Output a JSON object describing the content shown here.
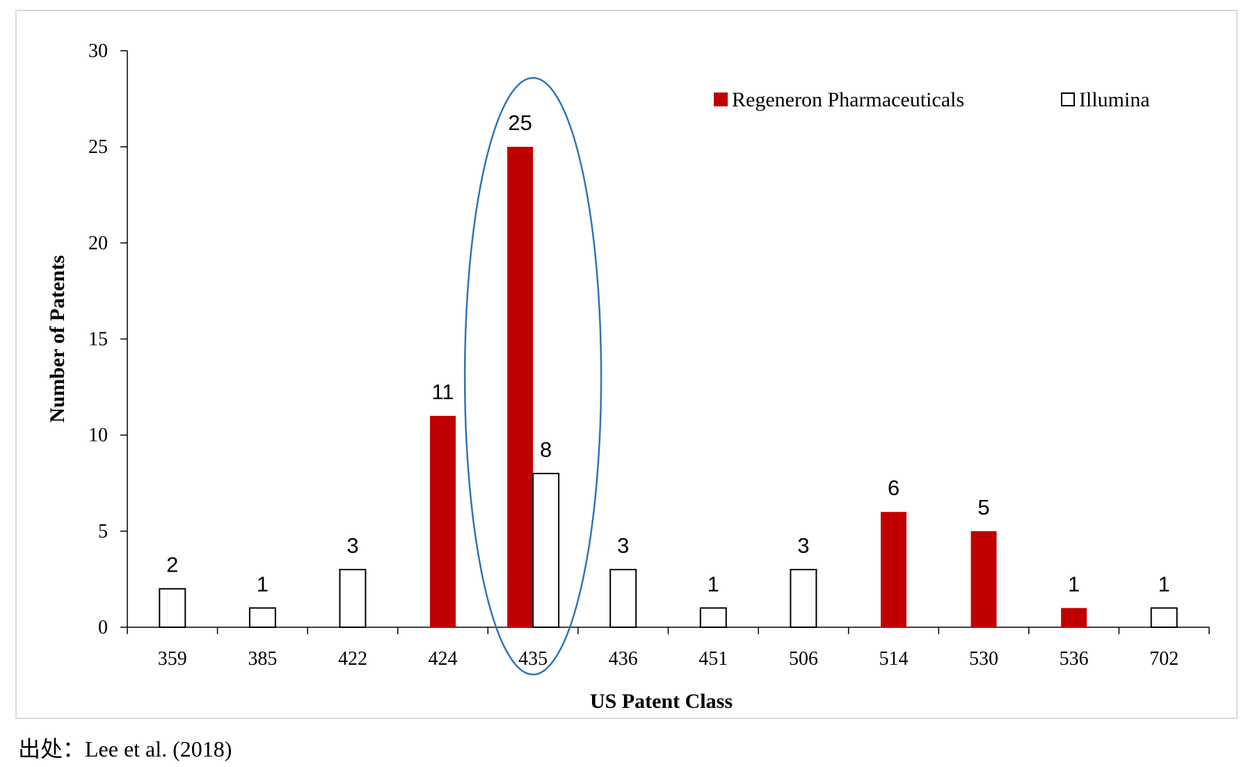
{
  "source_note": "出处：Lee et al. (2018)",
  "colors": {
    "regeneron": "#c00000",
    "illumina": "#ffffff",
    "bar_stroke": "#000000",
    "highlight_ellipse": "#2e75b6"
  },
  "chart_data": {
    "type": "bar",
    "title": "",
    "xlabel": "US Patent Class",
    "ylabel": "Number of Patents",
    "ylim": [
      0,
      30
    ],
    "yticks": [
      0,
      5,
      10,
      15,
      20,
      25,
      30
    ],
    "categories": [
      "359",
      "385",
      "422",
      "424",
      "435",
      "436",
      "451",
      "506",
      "514",
      "530",
      "536",
      "702"
    ],
    "series": [
      {
        "name": "Regeneron Pharmaceuticals",
        "color": "#c00000",
        "values": [
          null,
          null,
          null,
          11,
          25,
          null,
          null,
          null,
          6,
          5,
          1,
          null
        ]
      },
      {
        "name": "Illumina",
        "color": "#ffffff",
        "values": [
          2,
          1,
          3,
          null,
          8,
          3,
          1,
          3,
          null,
          null,
          null,
          1
        ]
      }
    ],
    "legend_position": "top-right",
    "grid": false,
    "highlight": {
      "category": "435",
      "shape": "ellipse"
    }
  }
}
